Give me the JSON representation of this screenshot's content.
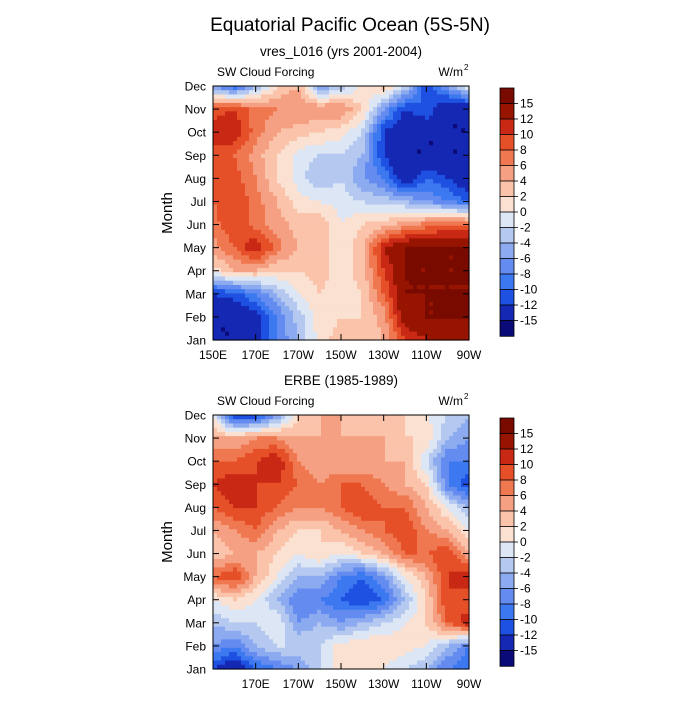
{
  "title": "Equatorial Pacific Ocean (5S-5N)",
  "colorbar_levels": [
    -15,
    -12,
    -10,
    -8,
    -6,
    -4,
    -2,
    0,
    2,
    4,
    6,
    8,
    10,
    12,
    15
  ],
  "colorbar_labels": [
    "15",
    "12",
    "10",
    "8",
    "6",
    "4",
    "2",
    "0",
    "-2",
    "-4",
    "-6",
    "-8",
    "-10",
    "-12",
    "-15"
  ],
  "colors": [
    "#0a0a78",
    "#1428b4",
    "#1e50e1",
    "#3c78f0",
    "#648cf0",
    "#8caaf0",
    "#b4c8f0",
    "#dce6f5",
    "#fae1d2",
    "#fac3aa",
    "#f5a082",
    "#f07850",
    "#e65028",
    "#c82814",
    "#961400",
    "#780a00"
  ],
  "chart_data": [
    {
      "type": "heatmap",
      "title": "vres_L016 (yrs 2001-2004)",
      "left_label": "SW Cloud Forcing",
      "units": "W/m",
      "units_sup": "2",
      "ylabel": "Month",
      "xlabel": "",
      "xlim": [
        150,
        270
      ],
      "ylim": [
        1,
        12
      ],
      "x_tick_values": [
        150,
        170,
        190,
        210,
        230,
        250,
        270
      ],
      "x_tick_labels": [
        "150E",
        "170E",
        "170W",
        "150W",
        "130W",
        "110W",
        "90W"
      ],
      "y_tick_labels": [
        "Jan",
        "Feb",
        "Mar",
        "Apr",
        "May",
        "Jun",
        "Jul",
        "Aug",
        "Sep",
        "Oct",
        "Nov",
        "Dec"
      ],
      "x_grid": [
        150,
        160,
        170,
        180,
        190,
        200,
        210,
        220,
        230,
        240,
        250,
        260,
        270
      ],
      "months": [
        1,
        2,
        3,
        4,
        5,
        6,
        7,
        8,
        9,
        10,
        11,
        12
      ],
      "values": [
        [
          -15,
          -15,
          -14,
          -8,
          -4,
          1,
          3,
          2,
          4,
          10,
          12,
          14,
          15
        ],
        [
          -15,
          -15,
          -13,
          -8,
          -3,
          1,
          2,
          2,
          5,
          14,
          15,
          15,
          15
        ],
        [
          -12,
          -11,
          -8,
          -4,
          0,
          2,
          1,
          2,
          8,
          15,
          15,
          15,
          15
        ],
        [
          1,
          4,
          4,
          2,
          2,
          3,
          1,
          3,
          10,
          15,
          15,
          15,
          15
        ],
        [
          5,
          8,
          12,
          7,
          4,
          3,
          1,
          3,
          12,
          15,
          15,
          15,
          15
        ],
        [
          7,
          10,
          7,
          5,
          3,
          4,
          0,
          2,
          3,
          5,
          7,
          8,
          8
        ],
        [
          8,
          10,
          7,
          4,
          1,
          0,
          -1,
          -2,
          -3,
          -4,
          -6,
          -8,
          -10
        ],
        [
          8,
          9,
          6,
          2,
          -1,
          -4,
          -2,
          -6,
          -8,
          -15,
          -10,
          -12,
          -15
        ],
        [
          9,
          8,
          5,
          2,
          -1,
          -2,
          -2,
          -4,
          -12,
          -15,
          -15,
          -15,
          -15
        ],
        [
          11,
          12,
          7,
          4,
          3,
          2,
          1,
          -2,
          -12,
          -15,
          -15,
          -15,
          -15
        ],
        [
          9,
          10,
          7,
          6,
          6,
          6,
          6,
          2,
          -6,
          -12,
          -10,
          -15,
          -15
        ],
        [
          -6,
          -10,
          -4,
          2,
          4,
          -6,
          -4,
          1,
          3,
          -2,
          -12,
          -6,
          0
        ]
      ]
    },
    {
      "type": "heatmap",
      "title": "ERBE (1985-1989)",
      "left_label": "SW Cloud Forcing",
      "units": "W/m",
      "units_sup": "2",
      "ylabel": "Month",
      "xlabel": "",
      "xlim": [
        150,
        270
      ],
      "ylim": [
        1,
        12
      ],
      "x_tick_values": [
        170,
        190,
        210,
        230,
        250,
        270
      ],
      "x_tick_labels": [
        "170E",
        "170W",
        "150W",
        "130W",
        "110W",
        "90W"
      ],
      "y_tick_labels": [
        "Jan",
        "Feb",
        "Mar",
        "Apr",
        "May",
        "Jun",
        "Jul",
        "Aug",
        "Sep",
        "Oct",
        "Nov",
        "Dec"
      ],
      "x_grid": [
        150,
        160,
        170,
        180,
        190,
        200,
        210,
        220,
        230,
        240,
        250,
        260,
        270
      ],
      "months": [
        1,
        2,
        3,
        4,
        5,
        6,
        7,
        8,
        9,
        10,
        11,
        12
      ],
      "values": [
        [
          -12,
          -15,
          -10,
          -8,
          -6,
          -2,
          1,
          2,
          0,
          -2,
          -4,
          -8,
          -10
        ],
        [
          -6,
          -8,
          -4,
          -2,
          -2,
          -2,
          1,
          2,
          2,
          1,
          0,
          -4,
          -8
        ],
        [
          -4,
          -2,
          -2,
          0,
          -6,
          -4,
          -6,
          -4,
          -2,
          0,
          2,
          8,
          12
        ],
        [
          0,
          2,
          0,
          -4,
          -8,
          -8,
          -10,
          -12,
          -10,
          -4,
          2,
          10,
          8
        ],
        [
          8,
          10,
          4,
          0,
          -4,
          -4,
          -8,
          -10,
          -6,
          0,
          4,
          10,
          12
        ],
        [
          2,
          4,
          4,
          2,
          0,
          2,
          0,
          2,
          4,
          8,
          8,
          10,
          4
        ],
        [
          4,
          6,
          8,
          4,
          2,
          2,
          4,
          6,
          8,
          10,
          6,
          4,
          0
        ],
        [
          8,
          10,
          10,
          8,
          6,
          6,
          8,
          10,
          8,
          8,
          4,
          0,
          -4
        ],
        [
          10,
          12,
          10,
          10,
          8,
          6,
          8,
          8,
          6,
          4,
          2,
          -8,
          -12
        ],
        [
          8,
          8,
          10,
          12,
          6,
          4,
          4,
          4,
          4,
          4,
          -2,
          -8,
          -8
        ],
        [
          4,
          4,
          6,
          6,
          4,
          4,
          4,
          4,
          4,
          2,
          2,
          -4,
          -6
        ],
        [
          0,
          -12,
          -12,
          -6,
          2,
          4,
          4,
          2,
          4,
          2,
          0,
          -2,
          -4
        ]
      ]
    }
  ]
}
